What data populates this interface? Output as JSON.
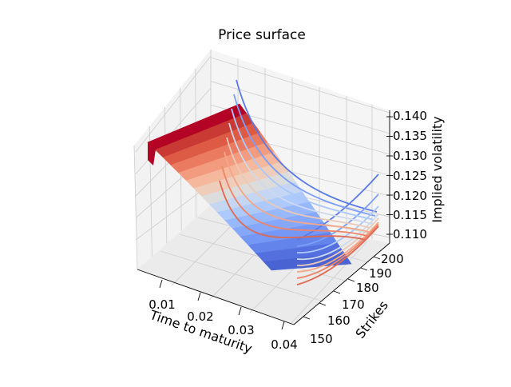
{
  "chart_data": {
    "type": "surface3d",
    "title": "Price surface",
    "xlabel": "Time to maturity",
    "ylabel": "Strikes",
    "zlabel": "Implied volatility",
    "x_ticks": [
      "0.01",
      "0.02",
      "0.03",
      "0.04"
    ],
    "y_ticks": [
      "150",
      "160",
      "170",
      "180",
      "190",
      "200"
    ],
    "z_ticks": [
      "0.110",
      "0.115",
      "0.120",
      "0.125",
      "0.130",
      "0.135",
      "0.140"
    ],
    "xlim": [
      0.003,
      0.042
    ],
    "ylim": [
      145,
      205
    ],
    "zlim": [
      0.11,
      0.14
    ],
    "colormap": "coolwarm",
    "surface": {
      "description_note": "implied volatility surface decreasing with time to maturity",
      "x_range": [
        0.004,
        0.041
      ],
      "y_range": [
        145,
        205
      ],
      "z_high": 0.14,
      "z_low": 0.11
    },
    "curves": [
      {
        "strike": 198,
        "z_end": 0.126
      },
      {
        "strike": 194,
        "z_end": 0.121
      },
      {
        "strike": 190,
        "z_end": 0.118
      },
      {
        "strike": 186,
        "z_end": 0.116
      },
      {
        "strike": 182,
        "z_end": 0.115
      },
      {
        "strike": 178,
        "z_end": 0.114
      },
      {
        "strike": 174,
        "z_end": 0.1135
      },
      {
        "strike": 170,
        "z_end": 0.113
      }
    ],
    "grid": true
  }
}
